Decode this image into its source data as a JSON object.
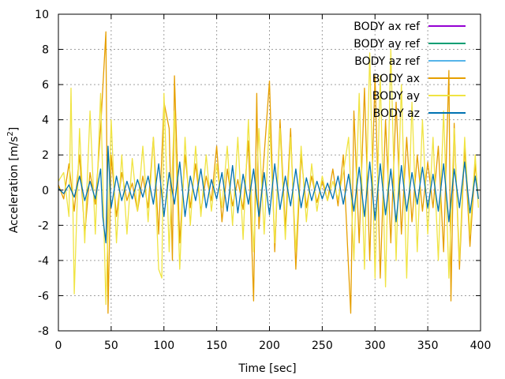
{
  "chart_data": {
    "type": "line",
    "xlabel": "Time [sec]",
    "ylabel": "Acceleration [m/s",
    "ylabel_sup": "2",
    "ylabel_close": "]",
    "xlim": [
      0,
      400
    ],
    "ylim": [
      -8,
      10
    ],
    "xticks": [
      0,
      50,
      100,
      150,
      200,
      250,
      300,
      350,
      400
    ],
    "yticks": [
      -8,
      -6,
      -4,
      -2,
      0,
      2,
      4,
      6,
      8,
      10
    ],
    "grid": true,
    "legend_position": "top-right",
    "series": [
      {
        "name": "BODY ax ref",
        "color": "#9400d3",
        "values": []
      },
      {
        "name": "BODY ay ref",
        "color": "#009e73",
        "values": []
      },
      {
        "name": "BODY az ref",
        "color": "#56b4e9",
        "values": []
      },
      {
        "name": "BODY ax",
        "color": "#e69f00",
        "x": [
          0,
          5,
          10,
          15,
          20,
          25,
          30,
          35,
          40,
          45,
          47,
          50,
          55,
          60,
          65,
          70,
          75,
          80,
          85,
          90,
          95,
          100,
          105,
          108,
          110,
          115,
          120,
          125,
          130,
          135,
          140,
          145,
          150,
          155,
          160,
          165,
          170,
          175,
          180,
          185,
          188,
          190,
          195,
          200,
          205,
          210,
          215,
          220,
          225,
          230,
          235,
          240,
          245,
          250,
          255,
          260,
          265,
          270,
          275,
          277,
          280,
          285,
          290,
          295,
          300,
          305,
          310,
          315,
          320,
          325,
          330,
          335,
          340,
          345,
          350,
          355,
          360,
          365,
          370,
          372,
          375,
          380,
          385,
          390,
          395,
          398
        ],
        "values": [
          0.3,
          -0.5,
          1.5,
          -1.2,
          2.0,
          -2.5,
          1.0,
          -0.8,
          3.5,
          9.0,
          -7.0,
          2.0,
          -1.5,
          1.0,
          -0.6,
          0.4,
          -1.2,
          0.8,
          -1.0,
          3.0,
          -2.5,
          5.0,
          3.5,
          -4.0,
          6.5,
          -3.0,
          2.0,
          -1.0,
          1.5,
          -1.2,
          0.8,
          -0.6,
          2.5,
          -1.8,
          1.2,
          -0.9,
          0.6,
          -1.1,
          2.8,
          -6.3,
          5.5,
          -2.2,
          2.0,
          6.2,
          -3.5,
          4.0,
          -2.2,
          3.5,
          -4.5,
          2.0,
          -1.0,
          0.8,
          -0.7,
          0.5,
          -0.6,
          1.2,
          -0.9,
          2.0,
          -4.5,
          -7.0,
          4.5,
          -3.0,
          5.8,
          -4.0,
          6.5,
          -5.0,
          4.0,
          -3.0,
          5.0,
          -2.5,
          3.0,
          -1.8,
          2.0,
          -1.2,
          1.6,
          -1.0,
          2.5,
          -3.5,
          6.8,
          -6.3,
          3.8,
          -4.5,
          2.5,
          -3.2,
          1.5,
          -0.5
        ]
      },
      {
        "name": "BODY ay",
        "color": "#f0e442",
        "x": [
          0,
          5,
          10,
          12,
          15,
          20,
          25,
          30,
          35,
          40,
          45,
          50,
          55,
          60,
          65,
          70,
          75,
          80,
          85,
          90,
          95,
          98,
          100,
          105,
          110,
          115,
          120,
          125,
          130,
          135,
          140,
          145,
          150,
          155,
          160,
          165,
          170,
          175,
          180,
          185,
          190,
          195,
          200,
          205,
          210,
          215,
          220,
          225,
          230,
          235,
          240,
          245,
          250,
          255,
          260,
          265,
          270,
          275,
          280,
          285,
          290,
          295,
          300,
          305,
          310,
          315,
          320,
          325,
          330,
          335,
          340,
          345,
          350,
          355,
          360,
          365,
          370,
          375,
          380,
          385,
          390,
          395,
          398
        ],
        "values": [
          0.5,
          1.0,
          -1.5,
          5.8,
          -5.9,
          3.5,
          -3.0,
          4.5,
          -2.5,
          5.5,
          -6.5,
          4.0,
          -3.0,
          2.0,
          -2.5,
          1.8,
          -1.2,
          2.5,
          -1.8,
          3.0,
          -4.5,
          -5.0,
          5.5,
          -3.5,
          4.5,
          -4.5,
          3.0,
          -2.0,
          2.5,
          -1.5,
          2.0,
          -1.2,
          1.5,
          -1.0,
          2.5,
          -2.0,
          3.0,
          -2.8,
          4.0,
          -3.5,
          3.5,
          -2.5,
          4.0,
          -3.0,
          3.5,
          -2.8,
          3.0,
          -3.5,
          2.5,
          -1.8,
          1.5,
          -1.2,
          0.8,
          -0.6,
          0.5,
          -0.5,
          1.0,
          3.0,
          -4.0,
          5.5,
          -4.5,
          7.8,
          -5.0,
          6.5,
          -5.5,
          8.0,
          -4.0,
          6.0,
          -5.0,
          5.0,
          -3.5,
          4.0,
          -2.5,
          3.0,
          -4.0,
          4.5,
          -5.0,
          3.5,
          -4.0,
          3.0,
          -2.5,
          2.0,
          -1.0
        ]
      },
      {
        "name": "BODY az",
        "color": "#0072b2",
        "x": [
          0,
          5,
          10,
          15,
          20,
          25,
          30,
          35,
          40,
          42,
          45,
          47,
          50,
          55,
          60,
          65,
          70,
          75,
          80,
          85,
          90,
          95,
          100,
          105,
          110,
          115,
          120,
          125,
          130,
          135,
          140,
          145,
          150,
          155,
          160,
          165,
          170,
          175,
          180,
          185,
          190,
          195,
          200,
          205,
          210,
          215,
          220,
          225,
          230,
          235,
          240,
          245,
          250,
          255,
          260,
          265,
          270,
          275,
          280,
          285,
          290,
          295,
          300,
          305,
          310,
          315,
          320,
          325,
          330,
          335,
          340,
          345,
          350,
          355,
          360,
          365,
          370,
          375,
          380,
          385,
          390,
          395,
          398
        ],
        "values": [
          0.1,
          -0.2,
          0.3,
          -0.4,
          0.8,
          -0.6,
          0.5,
          -0.5,
          1.2,
          -1.5,
          -3.0,
          2.5,
          -1.0,
          0.8,
          -0.6,
          0.5,
          -0.5,
          0.6,
          -0.4,
          0.8,
          -0.8,
          1.5,
          -1.5,
          1.0,
          -0.8,
          1.6,
          -1.5,
          0.8,
          -0.6,
          1.2,
          -1.0,
          0.6,
          -0.5,
          1.0,
          -1.2,
          1.4,
          -1.3,
          0.9,
          -0.8,
          1.2,
          -1.5,
          1.0,
          -1.4,
          1.5,
          -1.1,
          0.8,
          -0.9,
          1.2,
          -1.0,
          0.7,
          -0.6,
          0.5,
          -0.5,
          0.4,
          -0.5,
          0.8,
          -0.8,
          0.9,
          -1.2,
          1.3,
          -1.5,
          1.6,
          -1.7,
          1.5,
          -1.4,
          1.2,
          -1.8,
          1.4,
          -1.2,
          1.0,
          -0.8,
          1.3,
          -1.0,
          0.9,
          -1.2,
          1.5,
          -1.8,
          1.2,
          -1.0,
          1.6,
          -1.3,
          0.8,
          -0.5
        ]
      }
    ]
  }
}
